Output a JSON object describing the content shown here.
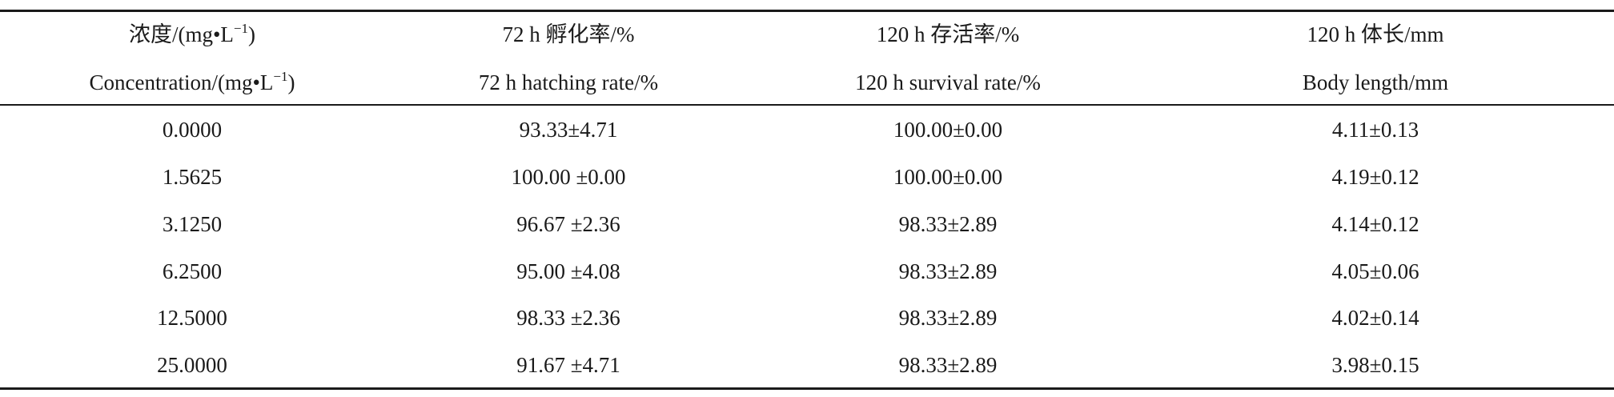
{
  "table": {
    "headers": [
      {
        "zh_prefix": "浓度/(mg•L",
        "zh_sup": "−1",
        "zh_suffix": ")",
        "en_prefix": "Concentration/(mg•L",
        "en_sup": "−1",
        "en_suffix": ")"
      },
      {
        "zh": "72 h 孵化率/%",
        "en": "72 h hatching rate/%"
      },
      {
        "zh": "120 h 存活率/%",
        "en": "120 h survival rate/%"
      },
      {
        "zh": "120 h 体长/mm",
        "en": "Body length/mm"
      }
    ],
    "rows": [
      [
        "0.0000",
        "93.33±4.71",
        "100.00±0.00",
        "4.11±0.13"
      ],
      [
        "1.5625",
        "100.00 ±0.00",
        "100.00±0.00",
        "4.19±0.12"
      ],
      [
        "3.1250",
        "96.67 ±2.36",
        "98.33±2.89",
        "4.14±0.12"
      ],
      [
        "6.2500",
        "95.00 ±4.08",
        "98.33±2.89",
        "4.05±0.06"
      ],
      [
        "12.5000",
        "98.33 ±2.36",
        "98.33±2.89",
        "4.02±0.14"
      ],
      [
        "25.0000",
        "91.67 ±4.71",
        "98.33±2.89",
        "3.98±0.15"
      ]
    ]
  }
}
